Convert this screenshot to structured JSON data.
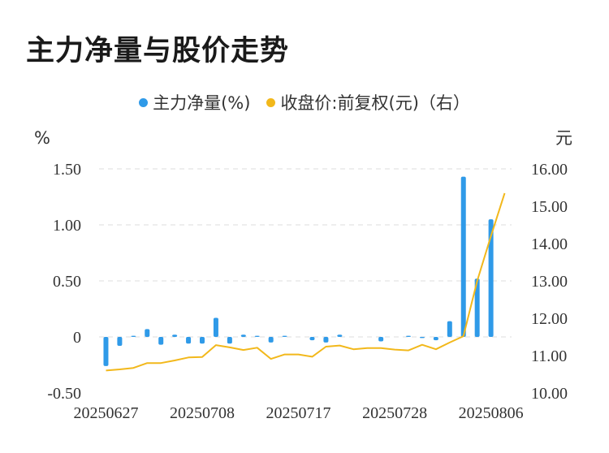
{
  "title": "主力净量与股价走势",
  "legend": {
    "series1_label": "主力净量(%)",
    "series2_label": "收盘价:前复权(元)（右）"
  },
  "colors": {
    "bar": "#2f9ae8",
    "line": "#f2b81b",
    "grid": "#e3e3e3"
  },
  "chart_data": {
    "type": "bar+line",
    "x": [
      "20250627",
      "20250630",
      "20250701",
      "20250702",
      "20250703",
      "20250704",
      "20250707",
      "20250708",
      "20250709",
      "20250710",
      "20250711",
      "20250714",
      "20250715",
      "20250716",
      "20250717",
      "20250718",
      "20250721",
      "20250722",
      "20250723",
      "20250724",
      "20250725",
      "20250728",
      "20250729",
      "20250730",
      "20250731",
      "20250801",
      "20250804",
      "20250805",
      "20250806",
      "20250807"
    ],
    "xticks": [
      "20250627",
      "20250708",
      "20250717",
      "20250728",
      "20250806"
    ],
    "series": [
      {
        "name": "主力净量(%)",
        "axis": "left",
        "type": "bar",
        "values": [
          -0.26,
          -0.08,
          0.01,
          0.07,
          -0.07,
          0.02,
          -0.06,
          -0.06,
          0.17,
          -0.06,
          0.02,
          0.01,
          -0.05,
          0.01,
          0.0,
          -0.03,
          -0.05,
          0.02,
          0.0,
          0.0,
          -0.04,
          0.0,
          0.01,
          -0.01,
          -0.03,
          0.14,
          1.43,
          0.52,
          1.05,
          0.0
        ]
      },
      {
        "name": "收盘价:前复权(元)（右）",
        "axis": "right",
        "type": "line",
        "values": [
          10.6,
          10.63,
          10.67,
          10.8,
          10.8,
          10.87,
          10.95,
          10.96,
          11.28,
          11.22,
          11.15,
          11.21,
          10.91,
          11.03,
          11.03,
          10.97,
          11.24,
          11.27,
          11.17,
          11.2,
          11.2,
          11.16,
          11.14,
          11.29,
          11.17,
          11.35,
          11.52,
          13.0,
          14.2,
          15.35
        ]
      }
    ],
    "y_left": {
      "unit": "%",
      "ticks": [
        "1.50",
        "1.00",
        "0.50",
        "0",
        "-0.50"
      ],
      "range": [
        -0.5,
        1.5
      ]
    },
    "y_right": {
      "unit": "元",
      "ticks": [
        "16.00",
        "15.00",
        "14.00",
        "13.00",
        "12.00",
        "11.00",
        "10.00"
      ],
      "range": [
        10,
        16
      ]
    },
    "grid": true,
    "legend_position": "top-center"
  }
}
